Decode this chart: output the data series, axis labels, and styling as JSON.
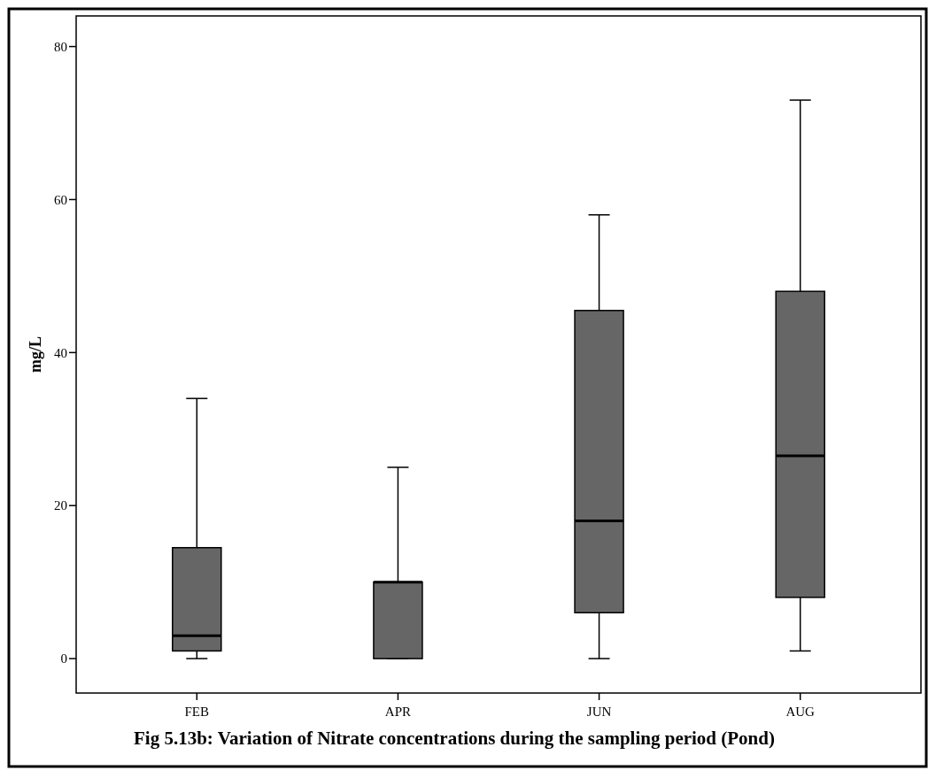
{
  "chart_data": {
    "type": "box",
    "ylabel": "mg/L",
    "categories": [
      "FEB",
      "APR",
      "JUN",
      "AUG"
    ],
    "color": "#666666",
    "boxes": [
      {
        "low": 0,
        "q1": 1,
        "median": 3,
        "q3": 14.5,
        "high": 34
      },
      {
        "low": 0,
        "q1": 0,
        "median": 10,
        "q3": 10,
        "high": 25
      },
      {
        "low": 0,
        "q1": 6,
        "median": 18,
        "q3": 45.5,
        "high": 58
      },
      {
        "low": 1,
        "q1": 8,
        "median": 26.5,
        "q3": 48,
        "high": 73
      }
    ],
    "ylim": [
      -4.5,
      84
    ],
    "yticks": [
      0,
      20,
      40,
      60,
      80
    ],
    "grid": false,
    "annotations": [
      "Fig 5.13b: Variation of Nitrate concentrations during the sampling period (Pond)"
    ]
  }
}
